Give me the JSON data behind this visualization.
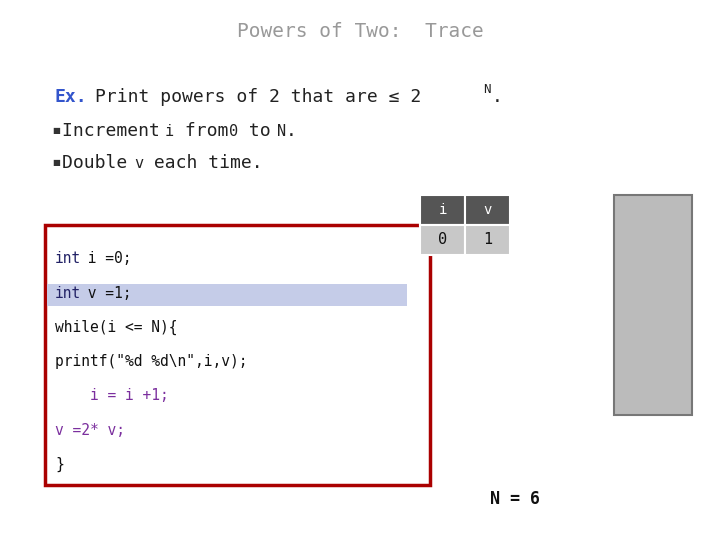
{
  "title": "Powers of Two:  Trace",
  "title_color": "#999999",
  "title_fontsize": 14,
  "bg_color": "#ffffff",
  "ex_color": "#3355cc",
  "table_header_color": "#555555",
  "table_cell_color": "#c8c8c8",
  "gray_box_color": "#bbbbbb",
  "code_border_color": "#aa0000",
  "highlight_color": "#c5cce8",
  "code_lines": [
    {
      "text": "int i =0;",
      "highlight": false,
      "int_keyword": true,
      "purple": false
    },
    {
      "text": "int v =1;",
      "highlight": true,
      "int_keyword": true,
      "purple": false
    },
    {
      "text": "while(i <= N){",
      "highlight": false,
      "int_keyword": false,
      "purple": false
    },
    {
      "text": "printf(\"%d %d\\n\",i,v);",
      "highlight": false,
      "int_keyword": false,
      "purple": false
    },
    {
      "text": "    i = i +1;",
      "highlight": false,
      "int_keyword": false,
      "purple": true
    },
    {
      "text": "v =2* v;",
      "highlight": false,
      "int_keyword": false,
      "purple": true
    },
    {
      "text": "}",
      "highlight": false,
      "int_keyword": false,
      "purple": false
    }
  ],
  "n_label": "N = 6"
}
